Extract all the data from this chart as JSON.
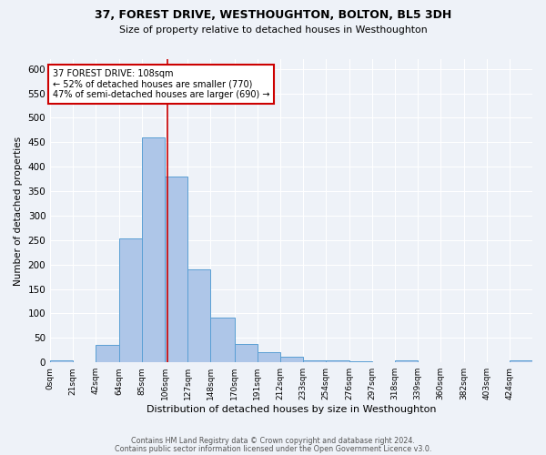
{
  "title1": "37, FOREST DRIVE, WESTHOUGHTON, BOLTON, BL5 3DH",
  "title2": "Size of property relative to detached houses in Westhoughton",
  "xlabel": "Distribution of detached houses by size in Westhoughton",
  "ylabel": "Number of detached properties",
  "footer1": "Contains HM Land Registry data © Crown copyright and database right 2024.",
  "footer2": "Contains public sector information licensed under the Open Government Licence v3.0.",
  "bin_labels": [
    "0sqm",
    "21sqm",
    "42sqm",
    "64sqm",
    "85sqm",
    "106sqm",
    "127sqm",
    "148sqm",
    "170sqm",
    "191sqm",
    "212sqm",
    "233sqm",
    "254sqm",
    "276sqm",
    "297sqm",
    "318sqm",
    "339sqm",
    "360sqm",
    "382sqm",
    "403sqm",
    "424sqm"
  ],
  "bar_values": [
    4,
    0,
    35,
    253,
    460,
    380,
    191,
    91,
    37,
    20,
    12,
    5,
    4,
    3,
    0,
    5,
    0,
    0,
    0,
    0,
    4
  ],
  "bar_color": "#aec6e8",
  "bar_edge_color": "#5a9fd4",
  "vline_x": 108,
  "vline_color": "#cc0000",
  "annotation_title": "37 FOREST DRIVE: 108sqm",
  "annotation_line2": "← 52% of detached houses are smaller (770)",
  "annotation_line3": "47% of semi-detached houses are larger (690) →",
  "annotation_box_color": "#ffffff",
  "annotation_border_color": "#cc0000",
  "ylim": [
    0,
    620
  ],
  "yticks": [
    0,
    50,
    100,
    150,
    200,
    250,
    300,
    350,
    400,
    450,
    500,
    550,
    600
  ],
  "bg_color": "#eef2f8",
  "plot_bg_color": "#eef2f8",
  "grid_color": "#ffffff",
  "bin_edges": [
    0,
    21,
    42,
    64,
    85,
    106,
    127,
    148,
    170,
    191,
    212,
    233,
    254,
    276,
    297,
    318,
    339,
    360,
    382,
    403,
    424,
    445
  ]
}
